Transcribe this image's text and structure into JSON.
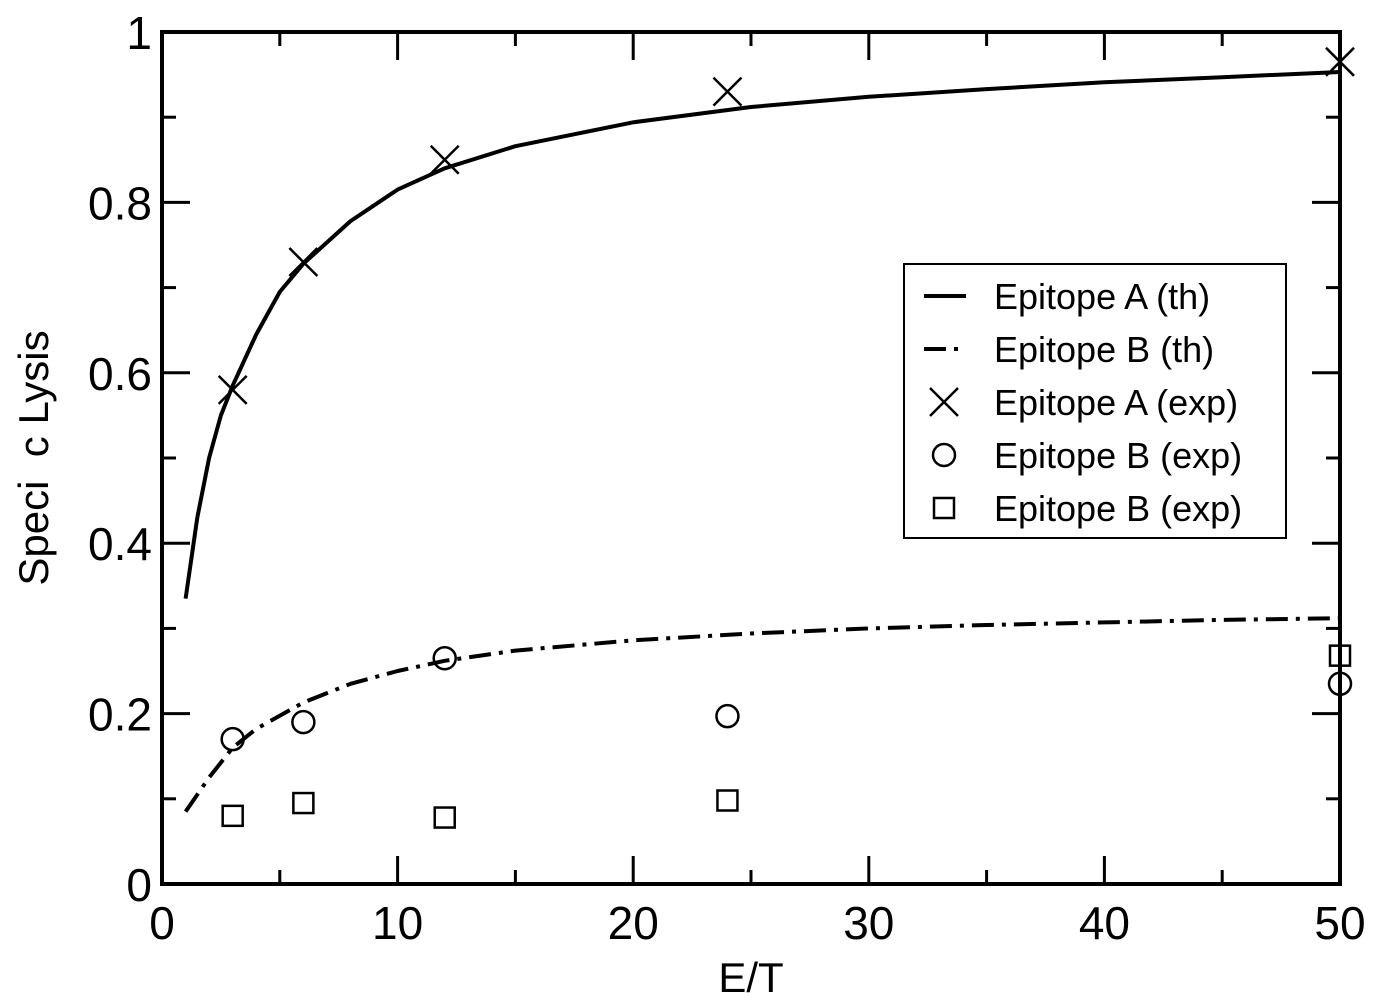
{
  "chart_data": {
    "type": "line",
    "title": "",
    "xlabel": "E/T",
    "ylabel": "Speci  c Lysis",
    "xlim": [
      0,
      50
    ],
    "ylim": [
      0,
      1
    ],
    "x_ticks": [
      0,
      10,
      20,
      30,
      40,
      50
    ],
    "x_tick_labels": [
      "0",
      "10",
      "20",
      "30",
      "40",
      "50"
    ],
    "y_ticks": [
      0,
      0.2,
      0.4,
      0.6,
      0.8,
      1
    ],
    "y_tick_labels": [
      "0",
      "0.2",
      "0.4",
      "0.6",
      "0.8",
      "1"
    ],
    "grid": false,
    "legend_position": "right-middle",
    "series": [
      {
        "name": "Epitope A (th)",
        "kind": "line",
        "style": "solid",
        "x": [
          1,
          1.5,
          2,
          2.5,
          3,
          4,
          5,
          6,
          8,
          10,
          12,
          15,
          20,
          25,
          30,
          35,
          40,
          45,
          50
        ],
        "y": [
          0.335,
          0.43,
          0.5,
          0.55,
          0.585,
          0.645,
          0.695,
          0.728,
          0.778,
          0.815,
          0.84,
          0.866,
          0.894,
          0.912,
          0.924,
          0.933,
          0.941,
          0.947,
          0.953
        ]
      },
      {
        "name": "Epitope B (th)",
        "kind": "line",
        "style": "dash-dot",
        "x": [
          1,
          2,
          3,
          4,
          6,
          8,
          10,
          12,
          15,
          20,
          25,
          30,
          35,
          40,
          45,
          50
        ],
        "y": [
          0.085,
          0.125,
          0.16,
          0.182,
          0.213,
          0.235,
          0.25,
          0.262,
          0.274,
          0.286,
          0.294,
          0.3,
          0.304,
          0.307,
          0.31,
          0.312
        ]
      },
      {
        "name": "Epitope A (exp)",
        "kind": "scatter",
        "marker": "x",
        "x": [
          3,
          6,
          12,
          24,
          50
        ],
        "y": [
          0.58,
          0.73,
          0.85,
          0.93,
          0.965
        ]
      },
      {
        "name": "Epitope B (exp)",
        "kind": "scatter",
        "marker": "circle",
        "x": [
          3,
          6,
          12,
          24,
          50
        ],
        "y": [
          0.17,
          0.19,
          0.265,
          0.197,
          0.235
        ]
      },
      {
        "name": "Epitope B (exp)",
        "kind": "scatter",
        "marker": "square",
        "x": [
          3,
          6,
          12,
          24,
          50
        ],
        "y": [
          0.08,
          0.095,
          0.078,
          0.098,
          0.268
        ]
      }
    ]
  }
}
